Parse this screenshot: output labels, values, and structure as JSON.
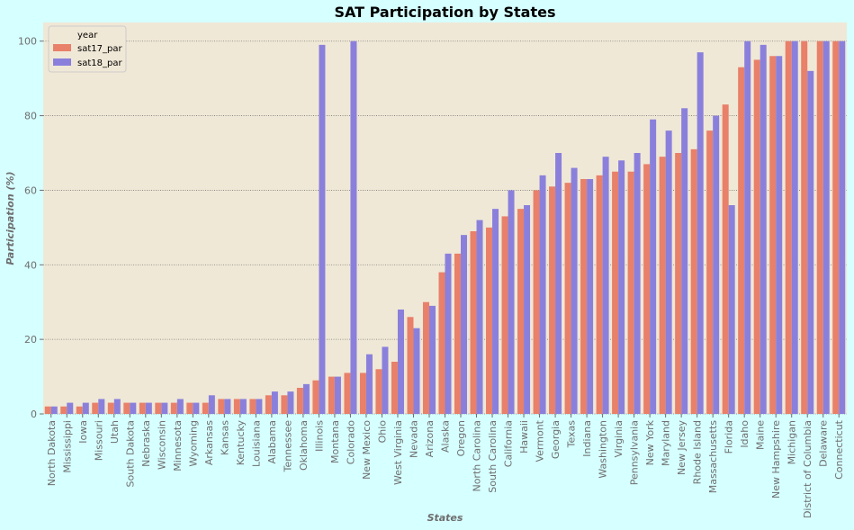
{
  "chart_data": {
    "type": "bar",
    "title": "SAT Participation by States",
    "xlabel": "States",
    "ylabel": "Participation (%)",
    "ylim": [
      0,
      105
    ],
    "yticks": [
      0,
      20,
      40,
      60,
      80,
      100
    ],
    "grid": "horizontal dotted",
    "legend": {
      "title": "year",
      "position": "top-left"
    },
    "categories": [
      "North Dakota",
      "Mississippi",
      "Iowa",
      "Missouri",
      "Utah",
      "South Dakota",
      "Nebraska",
      "Wisconsin",
      "Minnesota",
      "Wyoming",
      "Arkansas",
      "Kansas",
      "Kentucky",
      "Louisiana",
      "Alabama",
      "Tennessee",
      "Oklahoma",
      "Illinois",
      "Montana",
      "Colorado",
      "New Mexico",
      "Ohio",
      "West Virginia",
      "Nevada",
      "Arizona",
      "Alaska",
      "Oregon",
      "North Carolina",
      "South Carolina",
      "California",
      "Hawaii",
      "Vermont",
      "Georgia",
      "Texas",
      "Indiana",
      "Washington",
      "Virginia",
      "Pennsylvania",
      "New York",
      "Maryland",
      "New Jersey",
      "Rhode Island",
      "Massachusetts",
      "Florida",
      "Idaho",
      "Maine",
      "New Hampshire",
      "Michigan",
      "District of Columbia",
      "Delaware",
      "Connecticut"
    ],
    "series": [
      {
        "name": "sat17_par",
        "color": "#e8806a",
        "values": [
          2,
          2,
          2,
          3,
          3,
          3,
          3,
          3,
          3,
          3,
          3,
          4,
          4,
          4,
          5,
          5,
          7,
          9,
          10,
          11,
          11,
          12,
          14,
          26,
          30,
          38,
          43,
          49,
          50,
          53,
          55,
          60,
          61,
          62,
          63,
          64,
          65,
          65,
          67,
          69,
          70,
          71,
          76,
          83,
          93,
          95,
          96,
          100,
          100,
          100,
          100
        ]
      },
      {
        "name": "sat18_par",
        "color": "#8a80dc",
        "values": [
          2,
          3,
          3,
          4,
          4,
          3,
          3,
          3,
          4,
          3,
          5,
          4,
          4,
          4,
          6,
          6,
          8,
          99,
          10,
          100,
          16,
          18,
          28,
          23,
          29,
          43,
          48,
          52,
          55,
          60,
          56,
          64,
          70,
          66,
          63,
          69,
          68,
          70,
          79,
          76,
          82,
          97,
          80,
          56,
          100,
          99,
          96,
          100,
          92,
          100,
          100
        ]
      }
    ],
    "colors": {
      "plot_background": "#f0e8d6",
      "figure_background": "#d6ffff"
    }
  }
}
